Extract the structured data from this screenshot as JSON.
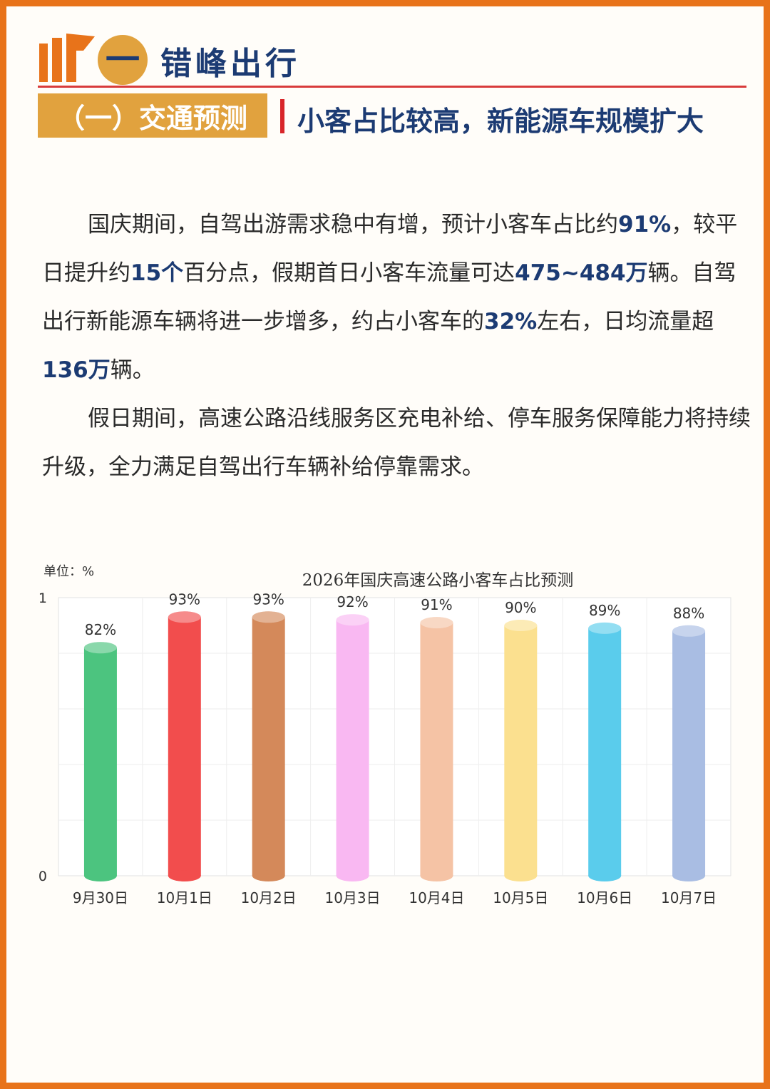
{
  "header": {
    "section_number": "一",
    "section_title": "错峰出行",
    "sub_label": "（一）交通预测",
    "sub_title": "小客占比较高，新能源车规模扩大"
  },
  "body": {
    "p1_s1": "国庆期间，自驾出游需求稳中有增，预计小客车占比约",
    "p1_h1": "91%",
    "p1_s2": "，较平日提升约",
    "p1_h2": "15个",
    "p1_s3": "百分点，假期首日小客车流量可达",
    "p1_h3": "475~484万",
    "p1_s4": "辆。自驾出行新能源车辆将进一步增多，约占小客车的",
    "p1_h4": "32%",
    "p1_s5": "左右，日均流量超",
    "p1_h5": "136万",
    "p1_s6": "辆。",
    "p2": "假日期间，高速公路沿线服务区充电补给、停车服务保障能力将持续升级，全力满足自驾出行车辆补给停靠需求。"
  },
  "colors": {
    "accent": "#e8731a",
    "gold": "#e1a23e",
    "navy": "#1c3b73",
    "red": "#d8262a"
  },
  "chart_data": {
    "type": "bar",
    "title": "2026年国庆高速公路小客车占比预测",
    "unit_label": "单位：%",
    "categories": [
      "9月30日",
      "10月1日",
      "10月2日",
      "10月3日",
      "10月4日",
      "10月5日",
      "10月6日",
      "10月7日"
    ],
    "values": [
      0.82,
      0.93,
      0.93,
      0.92,
      0.91,
      0.9,
      0.89,
      0.88
    ],
    "value_labels": [
      "82%",
      "93%",
      "93%",
      "92%",
      "91%",
      "90%",
      "89%",
      "88%"
    ],
    "bar_colors": [
      "#4cc47f",
      "#f24d4d",
      "#d4895a",
      "#f9b8f2",
      "#f5c3a5",
      "#fbe08f",
      "#5accec",
      "#a9bde3"
    ],
    "ylim": [
      0,
      1
    ],
    "y_ticks": [
      "0",
      "1"
    ],
    "grid": true
  }
}
